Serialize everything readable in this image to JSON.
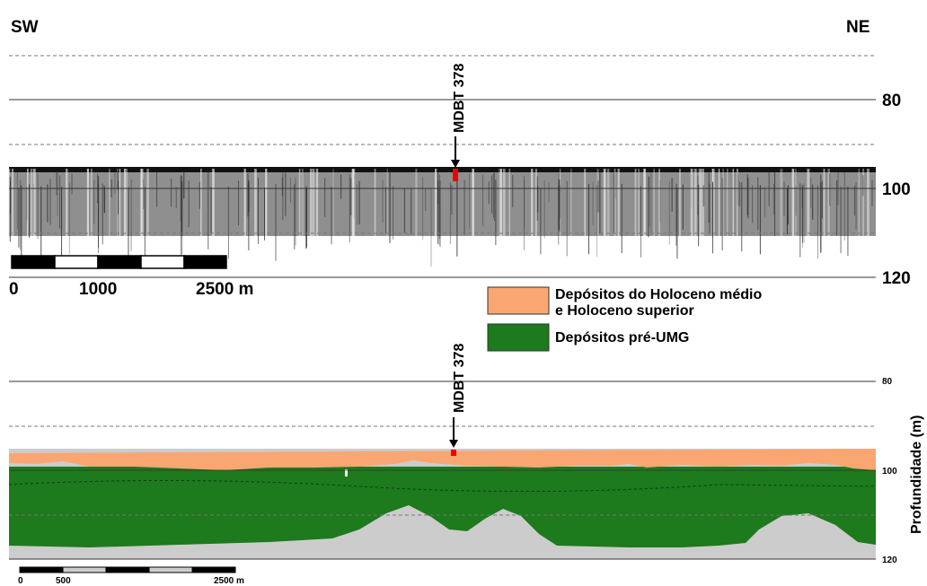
{
  "header": {
    "left": "SW",
    "right": "NE"
  },
  "top_panel": {
    "well_label": "MDBT 378",
    "depth_labels": [
      "80",
      "100",
      "120"
    ],
    "scale_labels": [
      "0",
      "1000",
      "2500 m"
    ]
  },
  "legend": [
    {
      "lines": [
        "Depósitos do Holoceno médio",
        "e Holoceno superior"
      ]
    },
    {
      "lines": [
        "Depósitos pré-UMG"
      ]
    }
  ],
  "bottom_panel": {
    "well_label": "MDBT 378",
    "depth_labels": [
      "80",
      "100",
      "120"
    ],
    "scale_labels": [
      "0",
      "500",
      "2500 m"
    ]
  },
  "axis_title": "Profundidade (m)"
}
